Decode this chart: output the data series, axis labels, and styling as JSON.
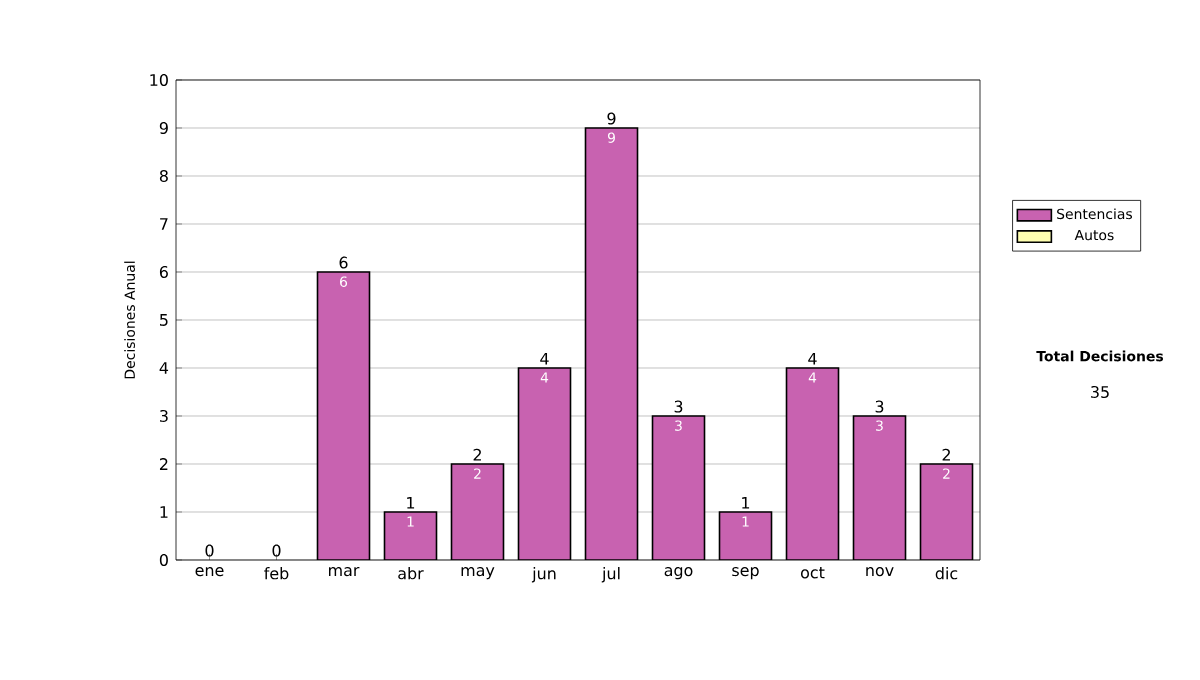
{
  "chart_data": {
    "type": "bar",
    "stacked": true,
    "ylabel": "Decisiones Anual",
    "categories": [
      "ene",
      "feb",
      "mar",
      "abr",
      "may",
      "jun",
      "jul",
      "ago",
      "sep",
      "oct",
      "nov",
      "dic"
    ],
    "series": [
      {
        "name": "Sentencias",
        "color": "#c862b0",
        "values": [
          0,
          0,
          6,
          1,
          2,
          4,
          9,
          3,
          1,
          4,
          3,
          2
        ],
        "value_labels": [
          null,
          null,
          "6",
          "1",
          "2",
          "4",
          "9",
          "3",
          "1",
          "4",
          "3",
          "2"
        ]
      },
      {
        "name": "Autos",
        "color": "#ffffb0",
        "values": [
          0,
          0,
          0,
          0,
          0,
          0,
          0,
          0,
          0,
          0,
          0,
          0
        ]
      }
    ],
    "totals": [
      "0",
      "0",
      "6",
      "1",
      "2",
      "4",
      "9",
      "3",
      "1",
      "4",
      "3",
      "2"
    ],
    "ylim": [
      0,
      10
    ],
    "yticks": [
      0,
      1,
      2,
      3,
      4,
      5,
      6,
      7,
      8,
      9,
      10
    ],
    "grid": "y",
    "legend": "right",
    "annotations": [
      "Total Decisiones",
      "35"
    ]
  }
}
